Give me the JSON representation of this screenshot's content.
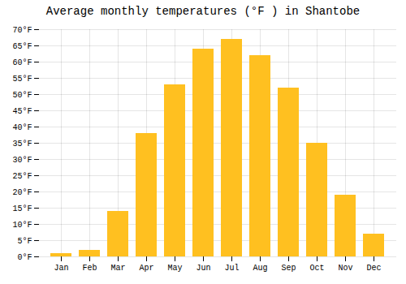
{
  "chart_data": {
    "type": "bar",
    "title": "Average monthly temperatures (°F ) in Shantobe",
    "categories": [
      "Jan",
      "Feb",
      "Mar",
      "Apr",
      "May",
      "Jun",
      "Jul",
      "Aug",
      "Sep",
      "Oct",
      "Nov",
      "Dec"
    ],
    "values": [
      1,
      2,
      14,
      38,
      53,
      64,
      67,
      62,
      52,
      35,
      19,
      7
    ],
    "color": "#FFC020",
    "ylim": [
      0,
      70
    ],
    "yticks": [
      {
        "value": 0,
        "label": "0°F"
      },
      {
        "value": 5,
        "label": "5°F"
      },
      {
        "value": 10,
        "label": "10°F"
      },
      {
        "value": 15,
        "label": "15°F"
      },
      {
        "value": 20,
        "label": "20°F"
      },
      {
        "value": 25,
        "label": "25°F"
      },
      {
        "value": 30,
        "label": "30°F"
      },
      {
        "value": 35,
        "label": "35°F"
      },
      {
        "value": 40,
        "label": "40°F"
      },
      {
        "value": 45,
        "label": "45°F"
      },
      {
        "value": 50,
        "label": "50°F"
      },
      {
        "value": 55,
        "label": "55°F"
      },
      {
        "value": 60,
        "label": "60°F"
      },
      {
        "value": 65,
        "label": "65°F"
      },
      {
        "value": 70,
        "label": "70°F"
      }
    ],
    "grid": true
  }
}
